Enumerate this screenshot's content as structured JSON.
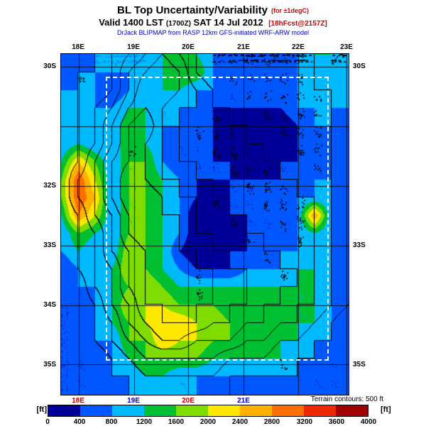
{
  "header": {
    "title": "BL Top Uncertainty/Variability",
    "title_qualifier": "(for ±1degC)",
    "valid_prefix": "Valid 1400 LST",
    "valid_zulu": "(1700Z)",
    "valid_date": "SAT 14 Jul 2012",
    "forecast_tag": "[18hFcst@2157Z]",
    "model_line": "DrJack BLIPMAP from RASP 12km GFS-initiated WRF-ARW model"
  },
  "map": {
    "top_ticks": [
      {
        "label": "18E",
        "f": 0.062
      },
      {
        "label": "19E",
        "f": 0.254
      },
      {
        "label": "20E",
        "f": 0.444
      },
      {
        "label": "21E",
        "f": 0.637
      },
      {
        "label": "22E",
        "f": 0.827
      },
      {
        "label": "23E",
        "f": 0.995
      }
    ],
    "bottom_ticks": [
      {
        "label": "18E",
        "f": 0.062,
        "color": "#cc0000"
      },
      {
        "label": "19E",
        "f": 0.254,
        "color": "#0000cc"
      },
      {
        "label": "20E",
        "f": 0.444,
        "color": "#cc0000"
      },
      {
        "label": "21E",
        "f": 0.637,
        "color": "#0000cc"
      }
    ],
    "left_ticks": [
      {
        "label": "30S",
        "f": 0.038
      },
      {
        "label": "32S",
        "f": 0.388
      },
      {
        "label": "33S",
        "f": 0.563
      },
      {
        "label": "34S",
        "f": 0.738
      },
      {
        "label": "35S",
        "f": 0.913
      }
    ],
    "right_ticks": [
      {
        "label": "30S",
        "f": 0.038
      },
      {
        "label": "33S",
        "f": 0.563
      },
      {
        "label": "35S",
        "f": 0.913
      }
    ],
    "grat_lon_f": [
      0.062,
      0.254,
      0.444,
      0.637,
      0.827,
      0.995
    ],
    "grat_lat_f": [
      0.038,
      0.213,
      0.388,
      0.563,
      0.738,
      0.913
    ],
    "terrain_note": "Terrain contours: 500 ft"
  },
  "colorbar": {
    "unit": "[ft]",
    "tick_labels": [
      "0",
      "400",
      "800",
      "1200",
      "1600",
      "2000",
      "2400",
      "2800",
      "3200",
      "3600",
      "4000"
    ]
  },
  "chart_data": {
    "type": "heatmap",
    "title": "BL Top Uncertainty/Variability (for ±1degC)",
    "units": "ft",
    "lon_range_deg_e": [
      17.7,
      23.0
    ],
    "lat_range_deg_s": [
      29.8,
      35.5
    ],
    "bin_edges_ft": [
      0,
      400,
      800,
      1200,
      1600,
      2000,
      2400,
      2800,
      3200,
      3600,
      4000
    ],
    "palette": [
      "#000099",
      "#0057ff",
      "#00b9ff",
      "#00c032",
      "#7fdc00",
      "#ffe800",
      "#ffb000",
      "#ff6e00",
      "#ee2800",
      "#a00000"
    ],
    "grid_encoding": "rows north to south, columns west to east; each character is a color-bin index, value ≈ index × 400 ft",
    "grid": [
      "112222343211112332",
      "122222344211112322",
      "222122332211112232",
      "232233222111112222",
      "233243221100101221",
      "232243211100001121",
      "364244211110011121",
      "485244321111111221",
      "486244321011112221",
      "375244320011112721",
      "243244320001112321",
      "232254310011122321",
      "122354321112223321",
      "122345433333333321",
      "112355544434343321",
      "112345665544443321",
      "112244655443433221",
      "111234444333332211",
      "111223322222222111",
      "111122222111211111"
    ],
    "terrain_contour_interval_ft": 500,
    "terrain_encoding": "each character = terrain elevation / 500 ft; black contours drawn at every 500 ft crossing",
    "terrain_grid": [
      "001234543222222211",
      "011245653222222211",
      "011246654322222221",
      "012356544332222221",
      "012467543333222221",
      "012466543333322221",
      "013566544333332221",
      "023576554433333221",
      "023577655443333321",
      "013467665444333321",
      "012467765544433321",
      "012456766554443321",
      "012356676655444321",
      "002356766665544321",
      "001346676655443321",
      "001245666554433210",
      "001234554443322110",
      "000123333322211100",
      "000112222211111000",
      "000011111110000000"
    ],
    "inner_domain_rect_f": {
      "x0": 0.156,
      "y0": 0.067,
      "x1": 0.931,
      "y1": 0.9
    }
  }
}
